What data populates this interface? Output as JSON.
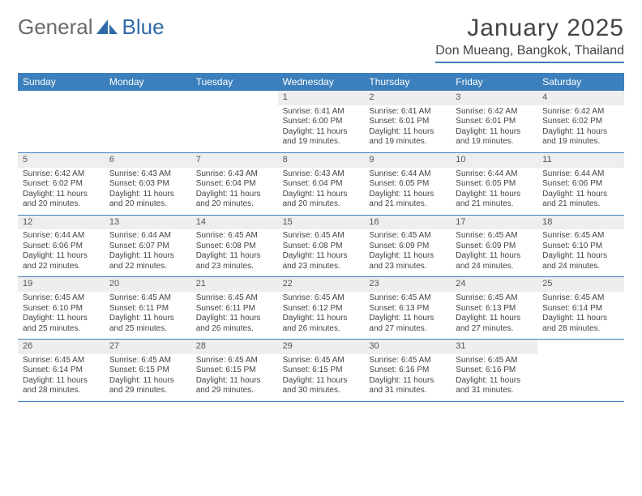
{
  "logo": {
    "text1": "General",
    "text2": "Blue"
  },
  "title": "January 2025",
  "location": "Don Mueang, Bangkok, Thailand",
  "header_bg": "#3b7fbc",
  "header_fg": "#ffffff",
  "daynum_bg": "#eeeeee",
  "rule_color": "#3b7fbc",
  "text_color": "#3a3a3a",
  "day_names": [
    "Sunday",
    "Monday",
    "Tuesday",
    "Wednesday",
    "Thursday",
    "Friday",
    "Saturday"
  ],
  "weeks": [
    [
      {
        "n": "",
        "lines": [
          "",
          "",
          "",
          ""
        ],
        "empty": true
      },
      {
        "n": "",
        "lines": [
          "",
          "",
          "",
          ""
        ],
        "empty": true
      },
      {
        "n": "",
        "lines": [
          "",
          "",
          "",
          ""
        ],
        "empty": true
      },
      {
        "n": "1",
        "lines": [
          "Sunrise: 6:41 AM",
          "Sunset: 6:00 PM",
          "Daylight: 11 hours",
          "and 19 minutes."
        ]
      },
      {
        "n": "2",
        "lines": [
          "Sunrise: 6:41 AM",
          "Sunset: 6:01 PM",
          "Daylight: 11 hours",
          "and 19 minutes."
        ]
      },
      {
        "n": "3",
        "lines": [
          "Sunrise: 6:42 AM",
          "Sunset: 6:01 PM",
          "Daylight: 11 hours",
          "and 19 minutes."
        ]
      },
      {
        "n": "4",
        "lines": [
          "Sunrise: 6:42 AM",
          "Sunset: 6:02 PM",
          "Daylight: 11 hours",
          "and 19 minutes."
        ]
      }
    ],
    [
      {
        "n": "5",
        "lines": [
          "Sunrise: 6:42 AM",
          "Sunset: 6:02 PM",
          "Daylight: 11 hours",
          "and 20 minutes."
        ]
      },
      {
        "n": "6",
        "lines": [
          "Sunrise: 6:43 AM",
          "Sunset: 6:03 PM",
          "Daylight: 11 hours",
          "and 20 minutes."
        ]
      },
      {
        "n": "7",
        "lines": [
          "Sunrise: 6:43 AM",
          "Sunset: 6:04 PM",
          "Daylight: 11 hours",
          "and 20 minutes."
        ]
      },
      {
        "n": "8",
        "lines": [
          "Sunrise: 6:43 AM",
          "Sunset: 6:04 PM",
          "Daylight: 11 hours",
          "and 20 minutes."
        ]
      },
      {
        "n": "9",
        "lines": [
          "Sunrise: 6:44 AM",
          "Sunset: 6:05 PM",
          "Daylight: 11 hours",
          "and 21 minutes."
        ]
      },
      {
        "n": "10",
        "lines": [
          "Sunrise: 6:44 AM",
          "Sunset: 6:05 PM",
          "Daylight: 11 hours",
          "and 21 minutes."
        ]
      },
      {
        "n": "11",
        "lines": [
          "Sunrise: 6:44 AM",
          "Sunset: 6:06 PM",
          "Daylight: 11 hours",
          "and 21 minutes."
        ]
      }
    ],
    [
      {
        "n": "12",
        "lines": [
          "Sunrise: 6:44 AM",
          "Sunset: 6:06 PM",
          "Daylight: 11 hours",
          "and 22 minutes."
        ]
      },
      {
        "n": "13",
        "lines": [
          "Sunrise: 6:44 AM",
          "Sunset: 6:07 PM",
          "Daylight: 11 hours",
          "and 22 minutes."
        ]
      },
      {
        "n": "14",
        "lines": [
          "Sunrise: 6:45 AM",
          "Sunset: 6:08 PM",
          "Daylight: 11 hours",
          "and 23 minutes."
        ]
      },
      {
        "n": "15",
        "lines": [
          "Sunrise: 6:45 AM",
          "Sunset: 6:08 PM",
          "Daylight: 11 hours",
          "and 23 minutes."
        ]
      },
      {
        "n": "16",
        "lines": [
          "Sunrise: 6:45 AM",
          "Sunset: 6:09 PM",
          "Daylight: 11 hours",
          "and 23 minutes."
        ]
      },
      {
        "n": "17",
        "lines": [
          "Sunrise: 6:45 AM",
          "Sunset: 6:09 PM",
          "Daylight: 11 hours",
          "and 24 minutes."
        ]
      },
      {
        "n": "18",
        "lines": [
          "Sunrise: 6:45 AM",
          "Sunset: 6:10 PM",
          "Daylight: 11 hours",
          "and 24 minutes."
        ]
      }
    ],
    [
      {
        "n": "19",
        "lines": [
          "Sunrise: 6:45 AM",
          "Sunset: 6:10 PM",
          "Daylight: 11 hours",
          "and 25 minutes."
        ]
      },
      {
        "n": "20",
        "lines": [
          "Sunrise: 6:45 AM",
          "Sunset: 6:11 PM",
          "Daylight: 11 hours",
          "and 25 minutes."
        ]
      },
      {
        "n": "21",
        "lines": [
          "Sunrise: 6:45 AM",
          "Sunset: 6:11 PM",
          "Daylight: 11 hours",
          "and 26 minutes."
        ]
      },
      {
        "n": "22",
        "lines": [
          "Sunrise: 6:45 AM",
          "Sunset: 6:12 PM",
          "Daylight: 11 hours",
          "and 26 minutes."
        ]
      },
      {
        "n": "23",
        "lines": [
          "Sunrise: 6:45 AM",
          "Sunset: 6:13 PM",
          "Daylight: 11 hours",
          "and 27 minutes."
        ]
      },
      {
        "n": "24",
        "lines": [
          "Sunrise: 6:45 AM",
          "Sunset: 6:13 PM",
          "Daylight: 11 hours",
          "and 27 minutes."
        ]
      },
      {
        "n": "25",
        "lines": [
          "Sunrise: 6:45 AM",
          "Sunset: 6:14 PM",
          "Daylight: 11 hours",
          "and 28 minutes."
        ]
      }
    ],
    [
      {
        "n": "26",
        "lines": [
          "Sunrise: 6:45 AM",
          "Sunset: 6:14 PM",
          "Daylight: 11 hours",
          "and 28 minutes."
        ]
      },
      {
        "n": "27",
        "lines": [
          "Sunrise: 6:45 AM",
          "Sunset: 6:15 PM",
          "Daylight: 11 hours",
          "and 29 minutes."
        ]
      },
      {
        "n": "28",
        "lines": [
          "Sunrise: 6:45 AM",
          "Sunset: 6:15 PM",
          "Daylight: 11 hours",
          "and 29 minutes."
        ]
      },
      {
        "n": "29",
        "lines": [
          "Sunrise: 6:45 AM",
          "Sunset: 6:15 PM",
          "Daylight: 11 hours",
          "and 30 minutes."
        ]
      },
      {
        "n": "30",
        "lines": [
          "Sunrise: 6:45 AM",
          "Sunset: 6:16 PM",
          "Daylight: 11 hours",
          "and 31 minutes."
        ]
      },
      {
        "n": "31",
        "lines": [
          "Sunrise: 6:45 AM",
          "Sunset: 6:16 PM",
          "Daylight: 11 hours",
          "and 31 minutes."
        ]
      },
      {
        "n": "",
        "lines": [
          "",
          "",
          "",
          ""
        ],
        "empty": true
      }
    ]
  ]
}
